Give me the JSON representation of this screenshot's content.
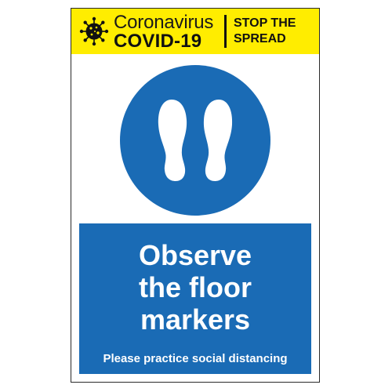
{
  "header": {
    "line1": "Coronavirus",
    "line2": "COVID-19",
    "slogan_line1": "STOP THE",
    "slogan_line2": "SPREAD",
    "icon": "virus-icon",
    "background_color": "#ffed00"
  },
  "symbol": {
    "icon": "footprints-icon",
    "circle_color": "#1a6bb5"
  },
  "panel": {
    "title_line1": "Observe",
    "title_line2": "the floor",
    "title_line3": "markers",
    "subtitle": "Please practice social distancing",
    "background_color": "#1a6bb5"
  }
}
